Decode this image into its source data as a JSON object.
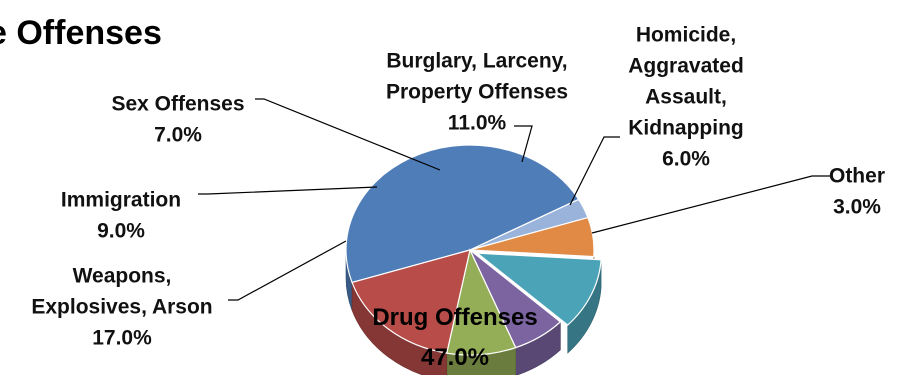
{
  "chart_data": {
    "type": "pie",
    "title": "e Offenses",
    "categories": [
      "Drug Offenses",
      "Other",
      "Homicide, Aggravated Assault, Kidnapping",
      "Burglary, Larceny, Property Offenses",
      "Sex Offenses",
      "Immigration",
      "Weapons, Explosives, Arson"
    ],
    "values": [
      47.0,
      3.0,
      6.0,
      11.0,
      7.0,
      9.0,
      17.0
    ],
    "value_labels": [
      "47.0%",
      "3.0%",
      "6.0%",
      "11.0%",
      "7.0%",
      "9.0%",
      "17.0%"
    ],
    "label_lines": [
      [
        "Drug Offenses"
      ],
      [
        "Other"
      ],
      [
        "Homicide,",
        "Aggravated",
        "Assault,",
        "Kidnapping"
      ],
      [
        "Burglary, Larceny,",
        "Property Offenses"
      ],
      [
        "Sex Offenses"
      ],
      [
        "Immigration"
      ],
      [
        "Weapons,",
        "Explosives, Arson"
      ]
    ],
    "colors": [
      "#4F7DB8",
      "#9AB3DA",
      "#E08A45",
      "#4BA3B8",
      "#7B64A0",
      "#93AE57",
      "#B84C48"
    ],
    "style": "3d-exploded",
    "legend": "none"
  }
}
